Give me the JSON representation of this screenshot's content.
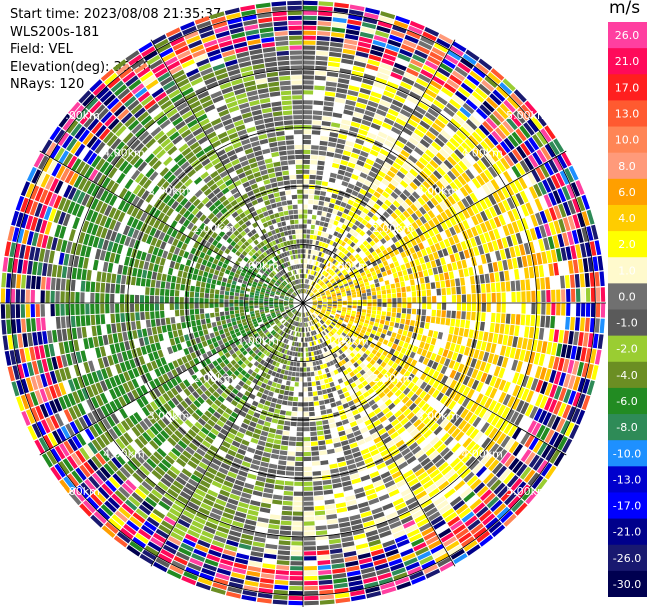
{
  "header": {
    "start_time": "Start time: 2023/08/08 21:35:37",
    "instrument": "WLS200s-181",
    "field": "Field: VEL",
    "elevation": "Elevation(deg): 35.30",
    "nrays": "NRays: 120"
  },
  "colorbar": {
    "unit": "m/s",
    "ticks": [
      "26.0",
      "21.0",
      "17.0",
      "13.0",
      "10.0",
      "8.0",
      "6.0",
      "4.0",
      "2.0",
      "1.0",
      "0.0",
      "-1.0",
      "-2.0",
      "-4.0",
      "-6.0",
      "-8.0",
      "-10.0",
      "-13.0",
      "-17.0",
      "-21.0",
      "-26.0",
      "-30.0"
    ],
    "colors": [
      "#ff3fa0",
      "#ff0a5a",
      "#ff1f1f",
      "#ff5a30",
      "#ff8555",
      "#ff9a7a",
      "#ff9f00",
      "#ffcc00",
      "#ffff00",
      "#fffacd",
      "#707070",
      "#5a5a5a",
      "#9acd32",
      "#6b8e23",
      "#228b22",
      "#2e8b57",
      "#1e90ff",
      "#0000cd",
      "#0000ff",
      "#00008b",
      "#191970",
      "#000050"
    ]
  },
  "chart_data": {
    "type": "heatmap",
    "subtype": "radar-ppi",
    "field": "VEL",
    "elevation_deg": 35.3,
    "n_rays": 120,
    "max_range_km": 5.2,
    "range_rings_km": [
      1,
      2,
      3,
      4,
      5
    ],
    "ring_labels": [
      "1.00km",
      "2.00km",
      "3.00km",
      "4.00km",
      "5.00km"
    ],
    "spoke_angles_deg": [
      0,
      30,
      60,
      90,
      120,
      150,
      180,
      210,
      240,
      270,
      300,
      330
    ],
    "color_scale_unit": "m/s",
    "value_range": [
      -30,
      30
    ],
    "approx_mean_field": {
      "radial_velocity_amplitude_ms": 4.5,
      "positive_direction": "east",
      "noise_beyond_km": 4.1
    }
  }
}
